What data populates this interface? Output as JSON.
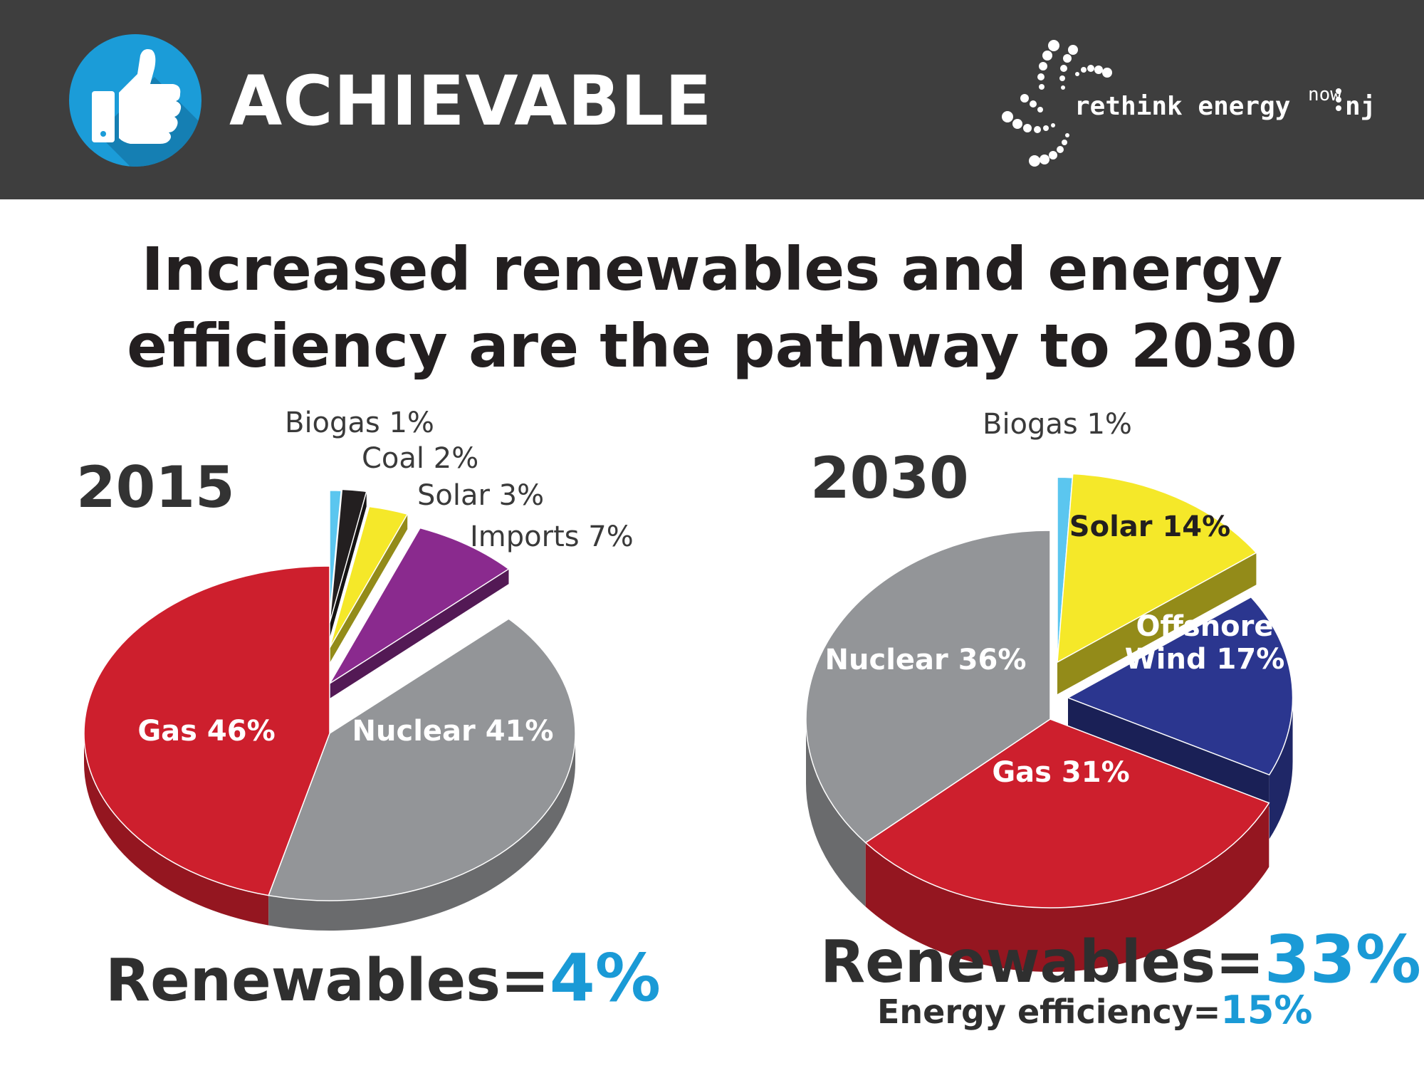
{
  "header": {
    "title": "ACHIEVABLE",
    "badge_icon": "thumbs-up-icon",
    "logo": {
      "word1": "rethink energy",
      "word2": "nj",
      "superscript": "now"
    }
  },
  "headline": {
    "line1": "Increased renewables and energy",
    "line2": "efficiency are the pathway to 2030"
  },
  "colors": {
    "header_bg": "#3e3e3e",
    "badge": "#1b9cd8",
    "accent_blue": "#1a9ad6",
    "gas": "#cd1f2d",
    "nuclear": "#939598",
    "imports": "#8a2a8e",
    "solar": "#f5e829",
    "coal": "#231f20",
    "biogas": "#5bc6ef",
    "offshore_wind": "#2b368f"
  },
  "chart_data": [
    {
      "type": "pie",
      "title": "2015",
      "labels": [
        "Biogas 1%",
        "Coal 2%",
        "Solar 3%",
        "Imports 7%",
        "Nuclear 41%",
        "Gas 46%"
      ],
      "series": [
        {
          "values": [
            1,
            2,
            3,
            7,
            41,
            46
          ]
        }
      ],
      "categories": [
        "Biogas",
        "Coal",
        "Solar",
        "Imports",
        "Nuclear",
        "Gas"
      ],
      "summary": {
        "label": "Renewables=",
        "value": "4%"
      }
    },
    {
      "type": "pie",
      "title": "2030",
      "labels": [
        "Biogas 1%",
        "Solar 14%",
        "Offshore Wind 17%",
        "Gas 31%",
        "Nuclear 36%"
      ],
      "series": [
        {
          "values": [
            1,
            14,
            17,
            31,
            36
          ]
        }
      ],
      "categories": [
        "Biogas",
        "Solar",
        "Offshore Wind",
        "Gas",
        "Nuclear"
      ],
      "summary": {
        "label": "Renewables=",
        "value": "33%",
        "sub_label": "Energy efficiency=",
        "sub_value": "15%"
      }
    }
  ]
}
